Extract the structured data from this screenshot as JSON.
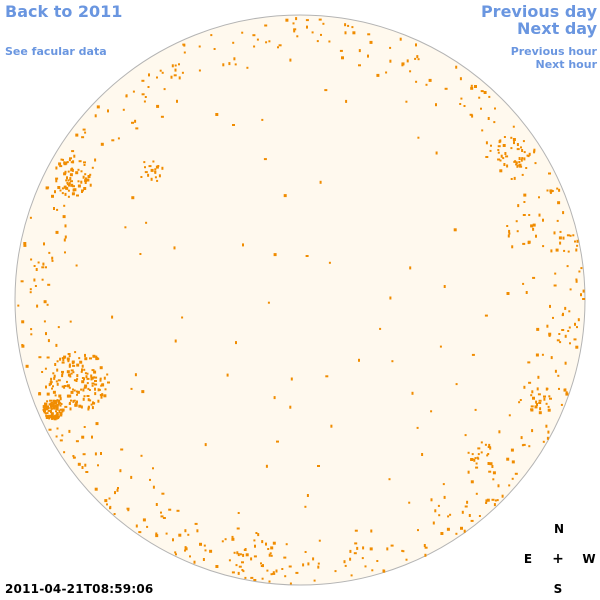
{
  "navigation": {
    "back_year": "Back to 2011",
    "facular_data": "See facular data",
    "previous_day": "Previous day",
    "next_day": "Next day",
    "previous_hour": "Previous hour",
    "next_hour": "Next hour"
  },
  "observation": {
    "timestamp": "2011-04-21T08:59:06"
  },
  "compass": {
    "north": "N",
    "east": "E",
    "center": "+",
    "west": "W",
    "south": "S"
  },
  "colors": {
    "disk_fill": "#fff9ee",
    "disk_outline": "#b4b4b4",
    "facula": "#f08c00",
    "link": "#6a96e0"
  }
}
